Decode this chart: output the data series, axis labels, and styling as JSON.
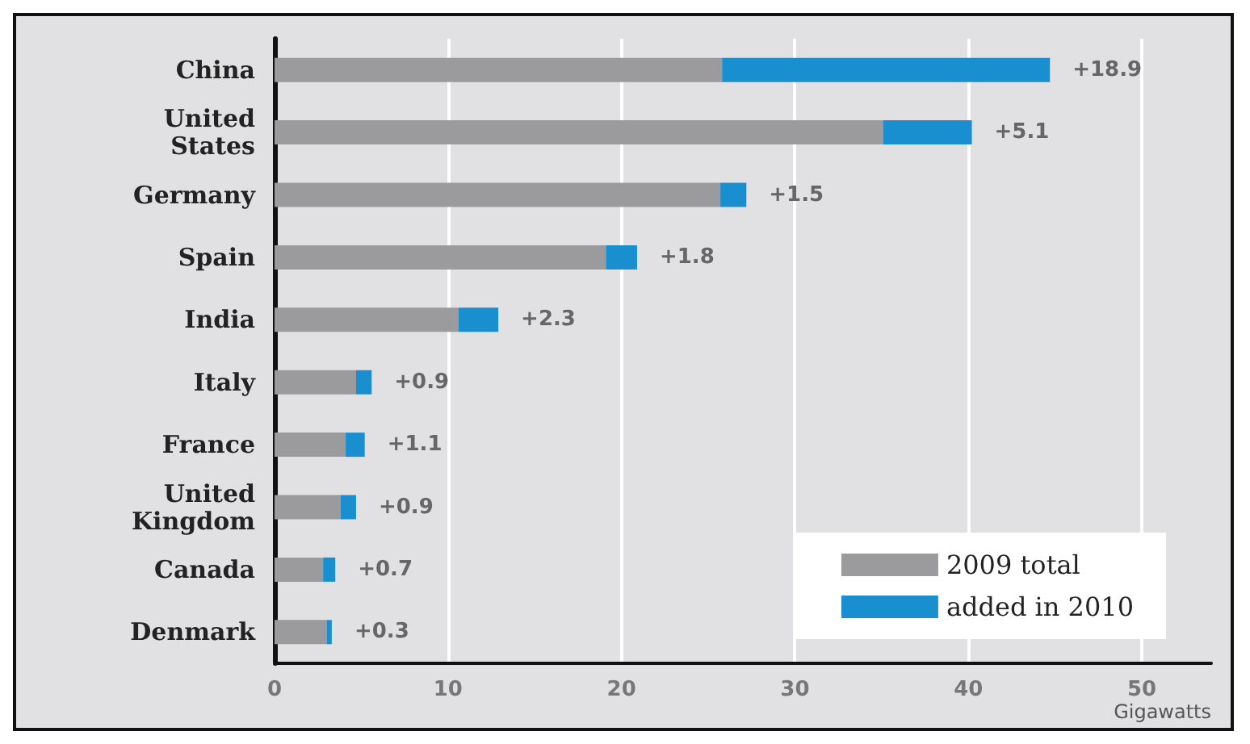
{
  "chart_data": {
    "type": "bar",
    "orientation": "horizontal",
    "stacked": true,
    "xlabel": "Gigawatts",
    "categories": [
      "China",
      "United\nStates",
      "Germany",
      "Spain",
      "India",
      "Italy",
      "France",
      "United\nKingdom",
      "Canada",
      "Denmark"
    ],
    "series": [
      {
        "name": "2009 total",
        "color": "#9b9b9d",
        "values": [
          25.8,
          35.1,
          25.7,
          19.1,
          10.6,
          4.7,
          4.1,
          3.8,
          2.8,
          3.0
        ]
      },
      {
        "name": "added in 2010",
        "color": "#1a8fd0",
        "values": [
          18.9,
          5.1,
          1.5,
          1.8,
          2.3,
          0.9,
          1.1,
          0.9,
          0.7,
          0.3
        ],
        "value_labels": [
          "+18.9",
          "+5.1",
          "+1.5",
          "+1.8",
          "+2.3",
          "+0.9",
          "+1.1",
          "+0.9",
          "+0.7",
          "+0.3"
        ]
      }
    ],
    "xlim": [
      0,
      54
    ],
    "xticks": [
      0,
      10,
      20,
      30,
      40,
      50
    ],
    "grid": "x",
    "legend": "bottom right"
  }
}
